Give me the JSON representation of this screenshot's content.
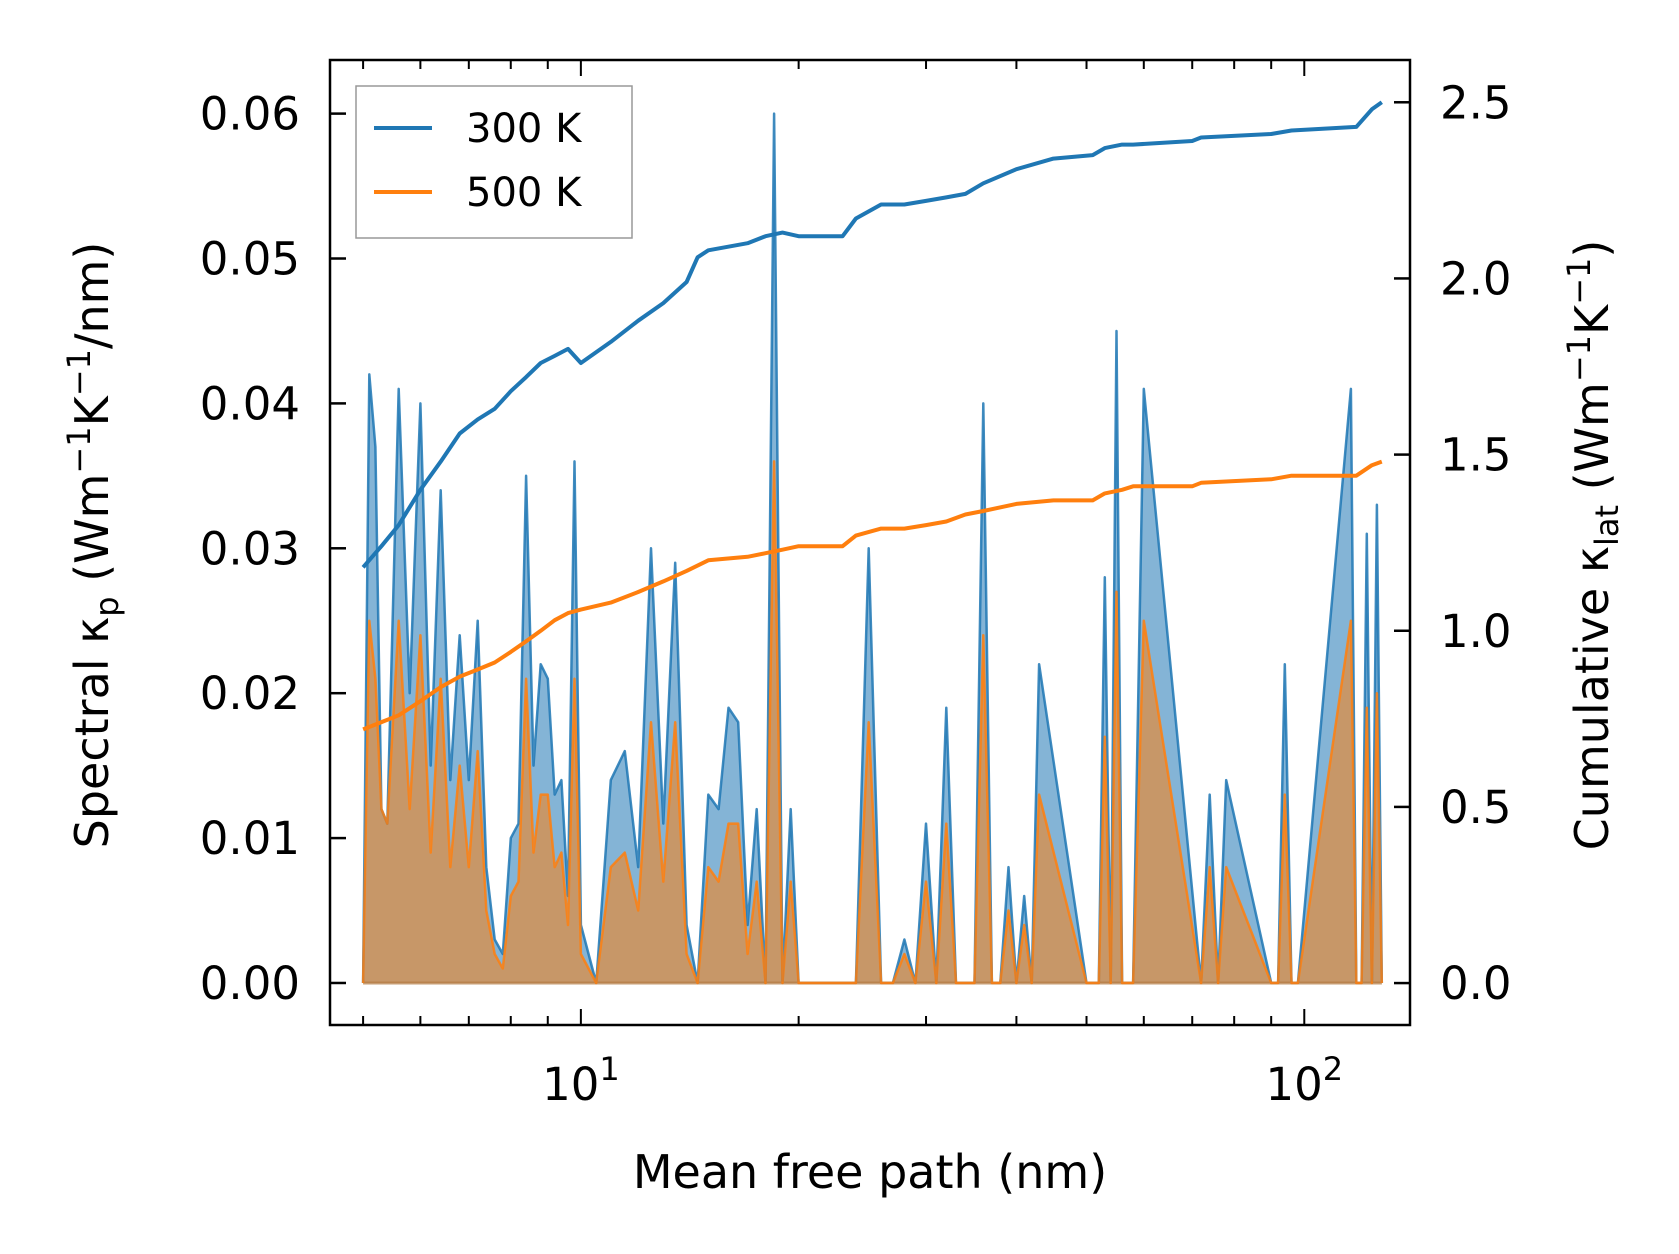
{
  "chart_data": {
    "type": "line",
    "title": "",
    "xlabel": "Mean free path (nm)",
    "ylabel": {
      "prefix": "Spectral κ",
      "sub": "p",
      "units": "(Wm",
      "u1": "−1",
      "u2": "K",
      "u3": "−1",
      "u4": "/nm)"
    },
    "y2label": {
      "prefix": "Cumulative κ",
      "sub": "lat",
      "units": "(Wm",
      "u1": "−1",
      "u2": "K",
      "u3": "−1",
      "u4": ")"
    },
    "xscale": "log",
    "xlim": [
      4.5,
      140
    ],
    "ylim": [
      -0.0029,
      0.0637
    ],
    "y2lim": [
      -0.119,
      2.62
    ],
    "xticks": [
      {
        "value": 10,
        "base": "10",
        "exp": "1"
      },
      {
        "value": 100,
        "base": "10",
        "exp": "2"
      }
    ],
    "yticks": [
      "0.00",
      "0.01",
      "0.02",
      "0.03",
      "0.04",
      "0.05",
      "0.06"
    ],
    "y2ticks": [
      "0.0",
      "0.5",
      "1.0",
      "1.5",
      "2.0",
      "2.5"
    ],
    "legend": {
      "position": "top-left",
      "entries": [
        "300 K",
        "500 K"
      ]
    },
    "colors": {
      "300 K": "#1f77b4",
      "500 K": "#ff7f0e"
    },
    "spectral_x": [
      5.0,
      5.1,
      5.2,
      5.3,
      5.4,
      5.6,
      5.8,
      6.0,
      6.2,
      6.4,
      6.6,
      6.8,
      7.0,
      7.2,
      7.4,
      7.6,
      7.8,
      8.0,
      8.2,
      8.4,
      8.6,
      8.8,
      9.0,
      9.2,
      9.4,
      9.6,
      9.8,
      10.0,
      10.5,
      11.0,
      11.5,
      12.0,
      12.5,
      13.0,
      13.5,
      14.0,
      14.5,
      15.0,
      15.5,
      16.0,
      16.5,
      17.0,
      17.5,
      18.0,
      18.5,
      19.0,
      19.5,
      20.0,
      23.0,
      24.0,
      25.0,
      26.0,
      27.0,
      28.0,
      29.0,
      30.0,
      31.0,
      32.0,
      33.0,
      34.0,
      35.0,
      36.0,
      37.0,
      38.0,
      39.0,
      40.0,
      41.0,
      42.0,
      43.0,
      50.0,
      51.0,
      52.0,
      53.0,
      54.0,
      55.0,
      56.0,
      57.0,
      58.0,
      60.0,
      72.0,
      74.0,
      76.0,
      78.0,
      90.0,
      92.0,
      94.0,
      96.0,
      98.0,
      116.0,
      118.0,
      120.0,
      122.0,
      124.0,
      126.0,
      128.0
    ],
    "series": [
      {
        "name": "300 K",
        "spectral": [
          0.0,
          0.042,
          0.037,
          0.012,
          0.011,
          0.041,
          0.02,
          0.04,
          0.015,
          0.034,
          0.014,
          0.024,
          0.014,
          0.025,
          0.008,
          0.003,
          0.002,
          0.01,
          0.011,
          0.035,
          0.015,
          0.022,
          0.021,
          0.013,
          0.014,
          0.006,
          0.036,
          0.004,
          0.0,
          0.014,
          0.016,
          0.008,
          0.03,
          0.011,
          0.029,
          0.004,
          0.0,
          0.013,
          0.012,
          0.019,
          0.018,
          0.004,
          0.012,
          0.0,
          0.06,
          0.0,
          0.012,
          0.0,
          0.0,
          0.0,
          0.03,
          0.0,
          0.0,
          0.003,
          0.0,
          0.011,
          0.0,
          0.019,
          0.0,
          0.0,
          0.0,
          0.04,
          0.0,
          0.0,
          0.008,
          0.0,
          0.006,
          0.0,
          0.022,
          0.0,
          0.0,
          0.0,
          0.028,
          0.0,
          0.045,
          0.0,
          0.0,
          0.0,
          0.041,
          0.0,
          0.013,
          0.0,
          0.014,
          0.0,
          0.0,
          0.022,
          0.0,
          0.0,
          0.041,
          0.0,
          0.0,
          0.031,
          0.0,
          0.033,
          0.0
        ],
        "cumulative_x": [
          5.0,
          5.3,
          5.6,
          6.0,
          6.4,
          6.8,
          7.2,
          7.6,
          8.0,
          8.4,
          8.8,
          9.2,
          9.6,
          10.0,
          11.0,
          12.0,
          13.0,
          14.0,
          14.5,
          15.0,
          17.0,
          18.0,
          19.0,
          20.0,
          23.0,
          24.0,
          26.0,
          28.0,
          30.0,
          32.0,
          34.0,
          36.0,
          40.0,
          45.0,
          51.0,
          53.0,
          56.0,
          58.0,
          70.0,
          72.0,
          90.0,
          96.0,
          118.0,
          124.0,
          128.0
        ],
        "cumulative": [
          1.18,
          1.24,
          1.3,
          1.4,
          1.48,
          1.56,
          1.6,
          1.63,
          1.68,
          1.72,
          1.76,
          1.78,
          1.8,
          1.76,
          1.82,
          1.88,
          1.93,
          1.99,
          2.06,
          2.08,
          2.1,
          2.12,
          2.13,
          2.12,
          2.12,
          2.17,
          2.21,
          2.21,
          2.22,
          2.23,
          2.24,
          2.27,
          2.31,
          2.34,
          2.35,
          2.37,
          2.38,
          2.38,
          2.39,
          2.4,
          2.41,
          2.42,
          2.43,
          2.48,
          2.5
        ]
      },
      {
        "name": "500 K",
        "spectral": [
          0.0,
          0.025,
          0.021,
          0.012,
          0.011,
          0.025,
          0.012,
          0.024,
          0.009,
          0.021,
          0.008,
          0.015,
          0.008,
          0.016,
          0.005,
          0.002,
          0.001,
          0.006,
          0.007,
          0.021,
          0.009,
          0.013,
          0.013,
          0.008,
          0.009,
          0.004,
          0.021,
          0.002,
          0.0,
          0.008,
          0.009,
          0.005,
          0.018,
          0.007,
          0.018,
          0.002,
          0.0,
          0.008,
          0.007,
          0.011,
          0.011,
          0.002,
          0.007,
          0.0,
          0.036,
          0.0,
          0.007,
          0.0,
          0.0,
          0.0,
          0.018,
          0.0,
          0.0,
          0.002,
          0.0,
          0.007,
          0.0,
          0.011,
          0.0,
          0.0,
          0.0,
          0.024,
          0.0,
          0.0,
          0.005,
          0.0,
          0.004,
          0.0,
          0.013,
          0.0,
          0.0,
          0.0,
          0.017,
          0.0,
          0.027,
          0.0,
          0.0,
          0.0,
          0.025,
          0.0,
          0.008,
          0.0,
          0.008,
          0.0,
          0.0,
          0.013,
          0.0,
          0.0,
          0.025,
          0.0,
          0.0,
          0.019,
          0.0,
          0.02,
          0.0
        ],
        "cumulative_x": [
          5.0,
          5.6,
          6.0,
          6.4,
          6.8,
          7.2,
          7.6,
          8.0,
          8.4,
          8.8,
          9.2,
          9.6,
          10.0,
          11.0,
          12.0,
          13.0,
          14.0,
          15.0,
          17.0,
          18.0,
          19.0,
          20.0,
          23.0,
          24.0,
          26.0,
          28.0,
          30.0,
          32.0,
          34.0,
          36.0,
          40.0,
          45.0,
          51.0,
          53.0,
          56.0,
          58.0,
          70.0,
          72.0,
          90.0,
          96.0,
          118.0,
          124.0,
          128.0
        ],
        "cumulative": [
          0.72,
          0.76,
          0.8,
          0.84,
          0.87,
          0.89,
          0.91,
          0.94,
          0.97,
          1.0,
          1.03,
          1.05,
          1.06,
          1.08,
          1.11,
          1.14,
          1.17,
          1.2,
          1.21,
          1.22,
          1.23,
          1.24,
          1.24,
          1.27,
          1.29,
          1.29,
          1.3,
          1.31,
          1.33,
          1.34,
          1.36,
          1.37,
          1.37,
          1.39,
          1.4,
          1.41,
          1.41,
          1.42,
          1.43,
          1.44,
          1.44,
          1.47,
          1.48
        ]
      }
    ]
  }
}
